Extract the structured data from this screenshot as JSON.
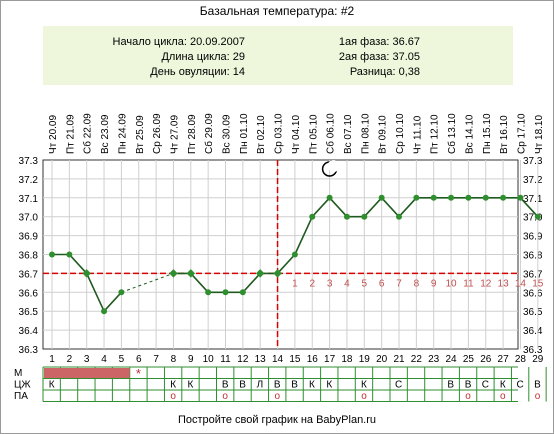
{
  "title": "Базальная температура: #2",
  "summary": {
    "start_label": "Начало цикла: 20.09.2007",
    "length_label": "Длина цикла: 29",
    "ovulation_label": "День овуляции: 14",
    "phase1_label": "1ая фаза: 36.67",
    "phase2_label": "2ая фаза: 37.05",
    "diff_label": "Разница: 0,38"
  },
  "footer": "Постройте свой график на BabyPlan.ru",
  "colors": {
    "line": "#1f5a1f",
    "point": "#2f8f2f",
    "coverline": "#d80000",
    "grid": "#cfcfcf",
    "menstruation_bar": "#cc6666",
    "phase_number": "#c05050",
    "symbol_red": "#c03030"
  },
  "chart_data": {
    "type": "line",
    "x": [
      1,
      2,
      3,
      4,
      5,
      6,
      7,
      8,
      9,
      10,
      11,
      12,
      13,
      14,
      15,
      16,
      17,
      18,
      19,
      20,
      21,
      22,
      23,
      24,
      25,
      26,
      27,
      28,
      29
    ],
    "dates": [
      "Чт 20.09",
      "Пт 21.09",
      "Сб 22.09",
      "Вс 23.09",
      "Пн 24.09",
      "Вт 25.09",
      "Ср 26.09",
      "Чт 27.09",
      "Пт 28.09",
      "Сб 29.09",
      "Вс 30.09",
      "Пн 01.10",
      "Вт 02.10",
      "Ср 03.10",
      "Чт 04.10",
      "Пт 05.10",
      "Сб 06.10",
      "Вс 07.10",
      "Пн 08.10",
      "Вт 09.10",
      "Ср 10.10",
      "Чт 11.10",
      "Пт 12.10",
      "Сб 13.10",
      "Вс 14.10",
      "Пн 15.10",
      "Вт 16.10",
      "Ср 17.10",
      "Чт 18.10"
    ],
    "values": [
      36.8,
      36.8,
      36.7,
      36.5,
      36.6,
      null,
      null,
      36.7,
      36.7,
      36.6,
      36.6,
      36.6,
      36.7,
      36.7,
      36.8,
      37.0,
      37.1,
      37.0,
      37.0,
      37.1,
      37.0,
      37.1,
      37.1,
      37.1,
      37.1,
      37.1,
      37.1,
      37.1,
      37.0
    ],
    "marked_points": [
      3,
      8,
      9,
      13,
      14
    ],
    "ylim": [
      36.3,
      37.3
    ],
    "yticks": [
      "36.3",
      "36.4",
      "36.5",
      "36.6",
      "36.7",
      "36.8",
      "36.9",
      "37.0",
      "37.1",
      "37.2",
      "37.3"
    ],
    "coverline": 36.7,
    "ovulation_day": 14,
    "grid": true,
    "phase_numbers": [
      "1",
      "2",
      "3",
      "4",
      "5",
      "6",
      "7",
      "8",
      "9",
      "10",
      "11",
      "12",
      "13",
      "14",
      "15"
    ],
    "moon_day": 17,
    "rows": [
      {
        "label": "М",
        "menstruation_days": 5,
        "star_day": 6
      },
      {
        "label": "ЦЖ",
        "values": [
          "К",
          "",
          "",
          "",
          "",
          "",
          "",
          "К",
          "К",
          "",
          "В",
          "В",
          "Л",
          "В",
          "В",
          "К",
          "К",
          "",
          "К",
          "",
          "С",
          "",
          "",
          "В",
          "В",
          "С",
          "К",
          "С",
          "В"
        ]
      },
      {
        "label": "ПА",
        "values": [
          "",
          "",
          "",
          "",
          "",
          "",
          "",
          "о",
          "",
          "",
          "о",
          "",
          "",
          "о",
          "",
          "",
          "",
          "",
          "о",
          "",
          "",
          "",
          "",
          "",
          "о",
          "",
          "о",
          "",
          "о"
        ]
      }
    ]
  }
}
